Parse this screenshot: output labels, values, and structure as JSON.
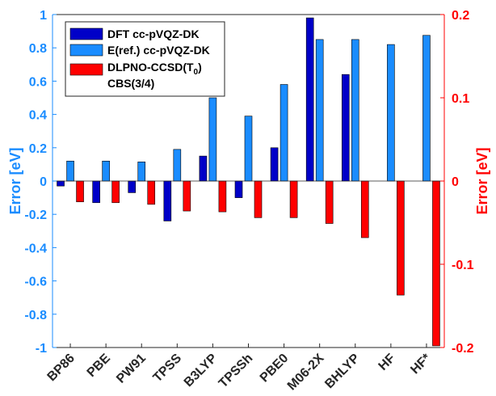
{
  "chart_data": {
    "type": "bar",
    "categories": [
      "BP86",
      "PBE",
      "PW91",
      "TPSS",
      "B3LYP",
      "TPSSh",
      "PBE0",
      "M06-2X",
      "BHLYP",
      "HF",
      "HF*"
    ],
    "series": [
      {
        "name": "DFT cc-pVQZ-DK",
        "axis": "left",
        "color": "#0000c8",
        "values": [
          -0.03,
          -0.13,
          -0.07,
          -0.24,
          0.15,
          -0.1,
          0.2,
          0.98,
          0.64,
          null,
          null
        ]
      },
      {
        "name": "E(ref.) cc-pVQZ-DK",
        "axis": "left",
        "color": "#1a8cff",
        "values": [
          0.12,
          0.12,
          0.115,
          0.19,
          0.5,
          0.39,
          0.58,
          0.85,
          0.85,
          0.82,
          0.875
        ]
      },
      {
        "name_line1": "DLPNO-CCSD(T",
        "name_sub": "0",
        "name_close": ")",
        "name_line2": "CBS(3/4)",
        "axis": "right",
        "color": "#ff0000",
        "values": [
          -0.025,
          -0.026,
          -0.028,
          -0.036,
          -0.037,
          -0.044,
          -0.044,
          -0.051,
          -0.068,
          -0.137,
          -0.198
        ]
      }
    ],
    "left_axis": {
      "label": "Error [eV]",
      "ylim": [
        -1,
        1
      ],
      "ticks": [
        "-1",
        "-0.8",
        "-0.6",
        "-0.4",
        "-0.2",
        "0",
        "0.2",
        "0.4",
        "0.6",
        "0.8",
        "1"
      ],
      "tick_values": [
        -1,
        -0.8,
        -0.6,
        -0.4,
        -0.2,
        0,
        0.2,
        0.4,
        0.6,
        0.8,
        1
      ],
      "color": "#1a8cff"
    },
    "right_axis": {
      "label": "Error [eV]",
      "ylim": [
        -0.2,
        0.2
      ],
      "ticks": [
        "-0.2",
        "-0.1",
        "0",
        "0.1",
        "0.2"
      ],
      "tick_values": [
        -0.2,
        -0.1,
        0,
        0.1,
        0.2
      ],
      "color": "#ff0000"
    },
    "legend_position": "top-left",
    "grid": false
  }
}
